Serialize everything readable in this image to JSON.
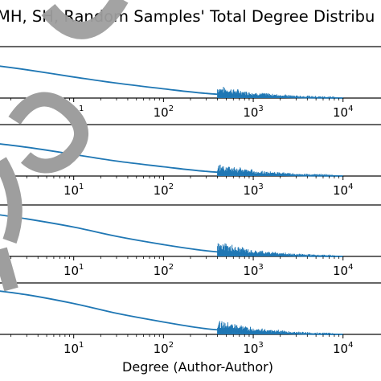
{
  "chart_data": {
    "type": "line",
    "title": "MH, SH, Random Samples' Total Degree Distribu",
    "xlabel": "Degree (Author-Author)",
    "xscale": "log",
    "xlim": [
      1,
      40000
    ],
    "x_ticks": [
      {
        "base": "10",
        "exp": "1"
      },
      {
        "base": "10",
        "exp": "2"
      },
      {
        "base": "10",
        "exp": "3"
      },
      {
        "base": "10",
        "exp": "4"
      }
    ],
    "line_color": "#1f77b4",
    "grid": false,
    "legend": "none",
    "panels": [
      {
        "series": [
          {
            "x": [
              1,
              3,
              10,
              30,
              100,
              300,
              1000,
              3000,
              10000
            ],
            "y": [
              0.66,
              0.55,
              0.41,
              0.29,
              0.18,
              0.09,
              0.035,
              0.01,
              0.0
            ]
          }
        ]
      },
      {
        "series": [
          {
            "x": [
              1,
              3,
              10,
              30,
              100,
              300,
              1000,
              3000,
              10000
            ],
            "y": [
              0.66,
              0.56,
              0.42,
              0.29,
              0.18,
              0.09,
              0.035,
              0.01,
              0.0
            ]
          }
        ]
      },
      {
        "series": [
          {
            "x": [
              1,
              3,
              10,
              30,
              100,
              300,
              1000,
              3000,
              10000
            ],
            "y": [
              0.85,
              0.73,
              0.57,
              0.39,
              0.23,
              0.11,
              0.04,
              0.01,
              0.0
            ]
          }
        ]
      },
      {
        "series": [
          {
            "x": [
              1,
              3,
              10,
              30,
              100,
              300,
              1000,
              3000,
              10000
            ],
            "y": [
              0.88,
              0.77,
              0.6,
              0.41,
              0.24,
              0.11,
              0.04,
              0.01,
              0.0
            ]
          }
        ]
      }
    ]
  }
}
